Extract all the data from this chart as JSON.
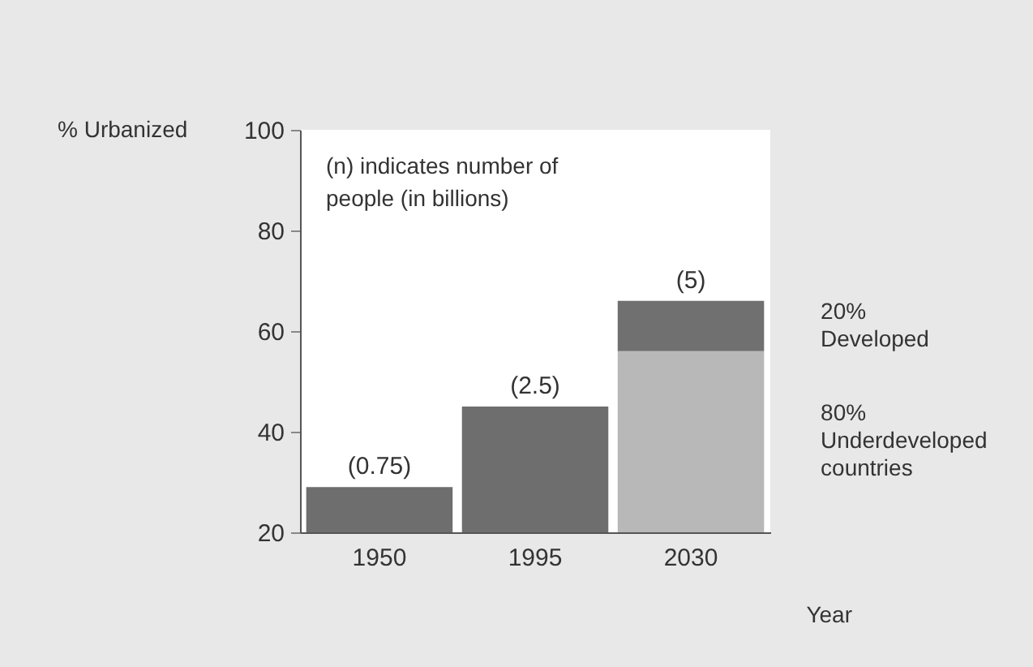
{
  "chart_data": {
    "type": "bar",
    "ylabel": "% Urbanized",
    "xlabel": "Year",
    "categories": [
      "1950",
      "1995",
      "2030"
    ],
    "series": [
      {
        "color": "#6e6e6e",
        "values": [
          9,
          25,
          null
        ],
        "base": [
          20,
          20,
          null
        ]
      },
      {
        "name": "80%\nUnderdeveloped\ncountries",
        "color": "#b8b8b8",
        "values": [
          null,
          null,
          36
        ],
        "base": [
          null,
          null,
          20
        ]
      },
      {
        "name": "20%\nDeveloped",
        "color": "#707070",
        "values": [
          null,
          null,
          10
        ],
        "base": [
          null,
          null,
          56
        ]
      }
    ],
    "ylim": [
      20,
      100
    ],
    "yticks": [
      20,
      40,
      60,
      80,
      100
    ],
    "grid": false,
    "legend": false,
    "annotations": [
      "(n) indicates number of people (in billions)",
      {
        "text": "(0.75)",
        "x": "1950",
        "y": 29
      },
      {
        "text": "(2.5)",
        "x": "1995",
        "y": 45
      },
      {
        "text": "(5)",
        "x": "2030",
        "y": 66
      }
    ]
  }
}
